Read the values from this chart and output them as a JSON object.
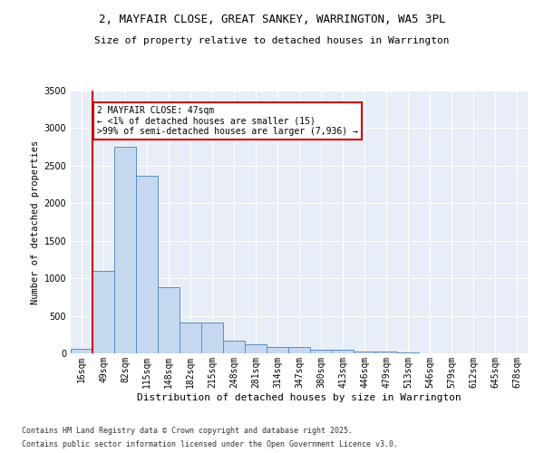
{
  "title_line1": "2, MAYFAIR CLOSE, GREAT SANKEY, WARRINGTON, WA5 3PL",
  "title_line2": "Size of property relative to detached houses in Warrington",
  "xlabel": "Distribution of detached houses by size in Warrington",
  "ylabel": "Number of detached properties",
  "footnote1": "Contains HM Land Registry data © Crown copyright and database right 2025.",
  "footnote2": "Contains public sector information licensed under the Open Government Licence v3.0.",
  "categories": [
    "16sqm",
    "49sqm",
    "82sqm",
    "115sqm",
    "148sqm",
    "182sqm",
    "215sqm",
    "248sqm",
    "281sqm",
    "314sqm",
    "347sqm",
    "380sqm",
    "413sqm",
    "446sqm",
    "479sqm",
    "513sqm",
    "546sqm",
    "579sqm",
    "612sqm",
    "645sqm",
    "678sqm"
  ],
  "bar_values": [
    55,
    1100,
    2750,
    2370,
    880,
    415,
    415,
    165,
    120,
    90,
    90,
    50,
    50,
    30,
    20,
    10,
    5,
    5,
    5,
    5,
    5
  ],
  "bar_color": "#c5d8f0",
  "bar_edge_color": "#5a8fc2",
  "property_line_color": "#cc0000",
  "annotation_text": "2 MAYFAIR CLOSE: 47sqm\n← <1% of detached houses are smaller (15)\n>99% of semi-detached houses are larger (7,936) →",
  "annotation_box_color": "#cc0000",
  "plot_bg_color": "#e8eef7",
  "fig_bg_color": "#ffffff",
  "ylim": [
    0,
    3500
  ],
  "yticks": [
    0,
    500,
    1000,
    1500,
    2000,
    2500,
    3000,
    3500
  ],
  "title1_fontsize": 9,
  "title2_fontsize": 8,
  "xlabel_fontsize": 8,
  "ylabel_fontsize": 7.5,
  "tick_fontsize": 7,
  "footnote_fontsize": 6,
  "annot_fontsize": 7
}
